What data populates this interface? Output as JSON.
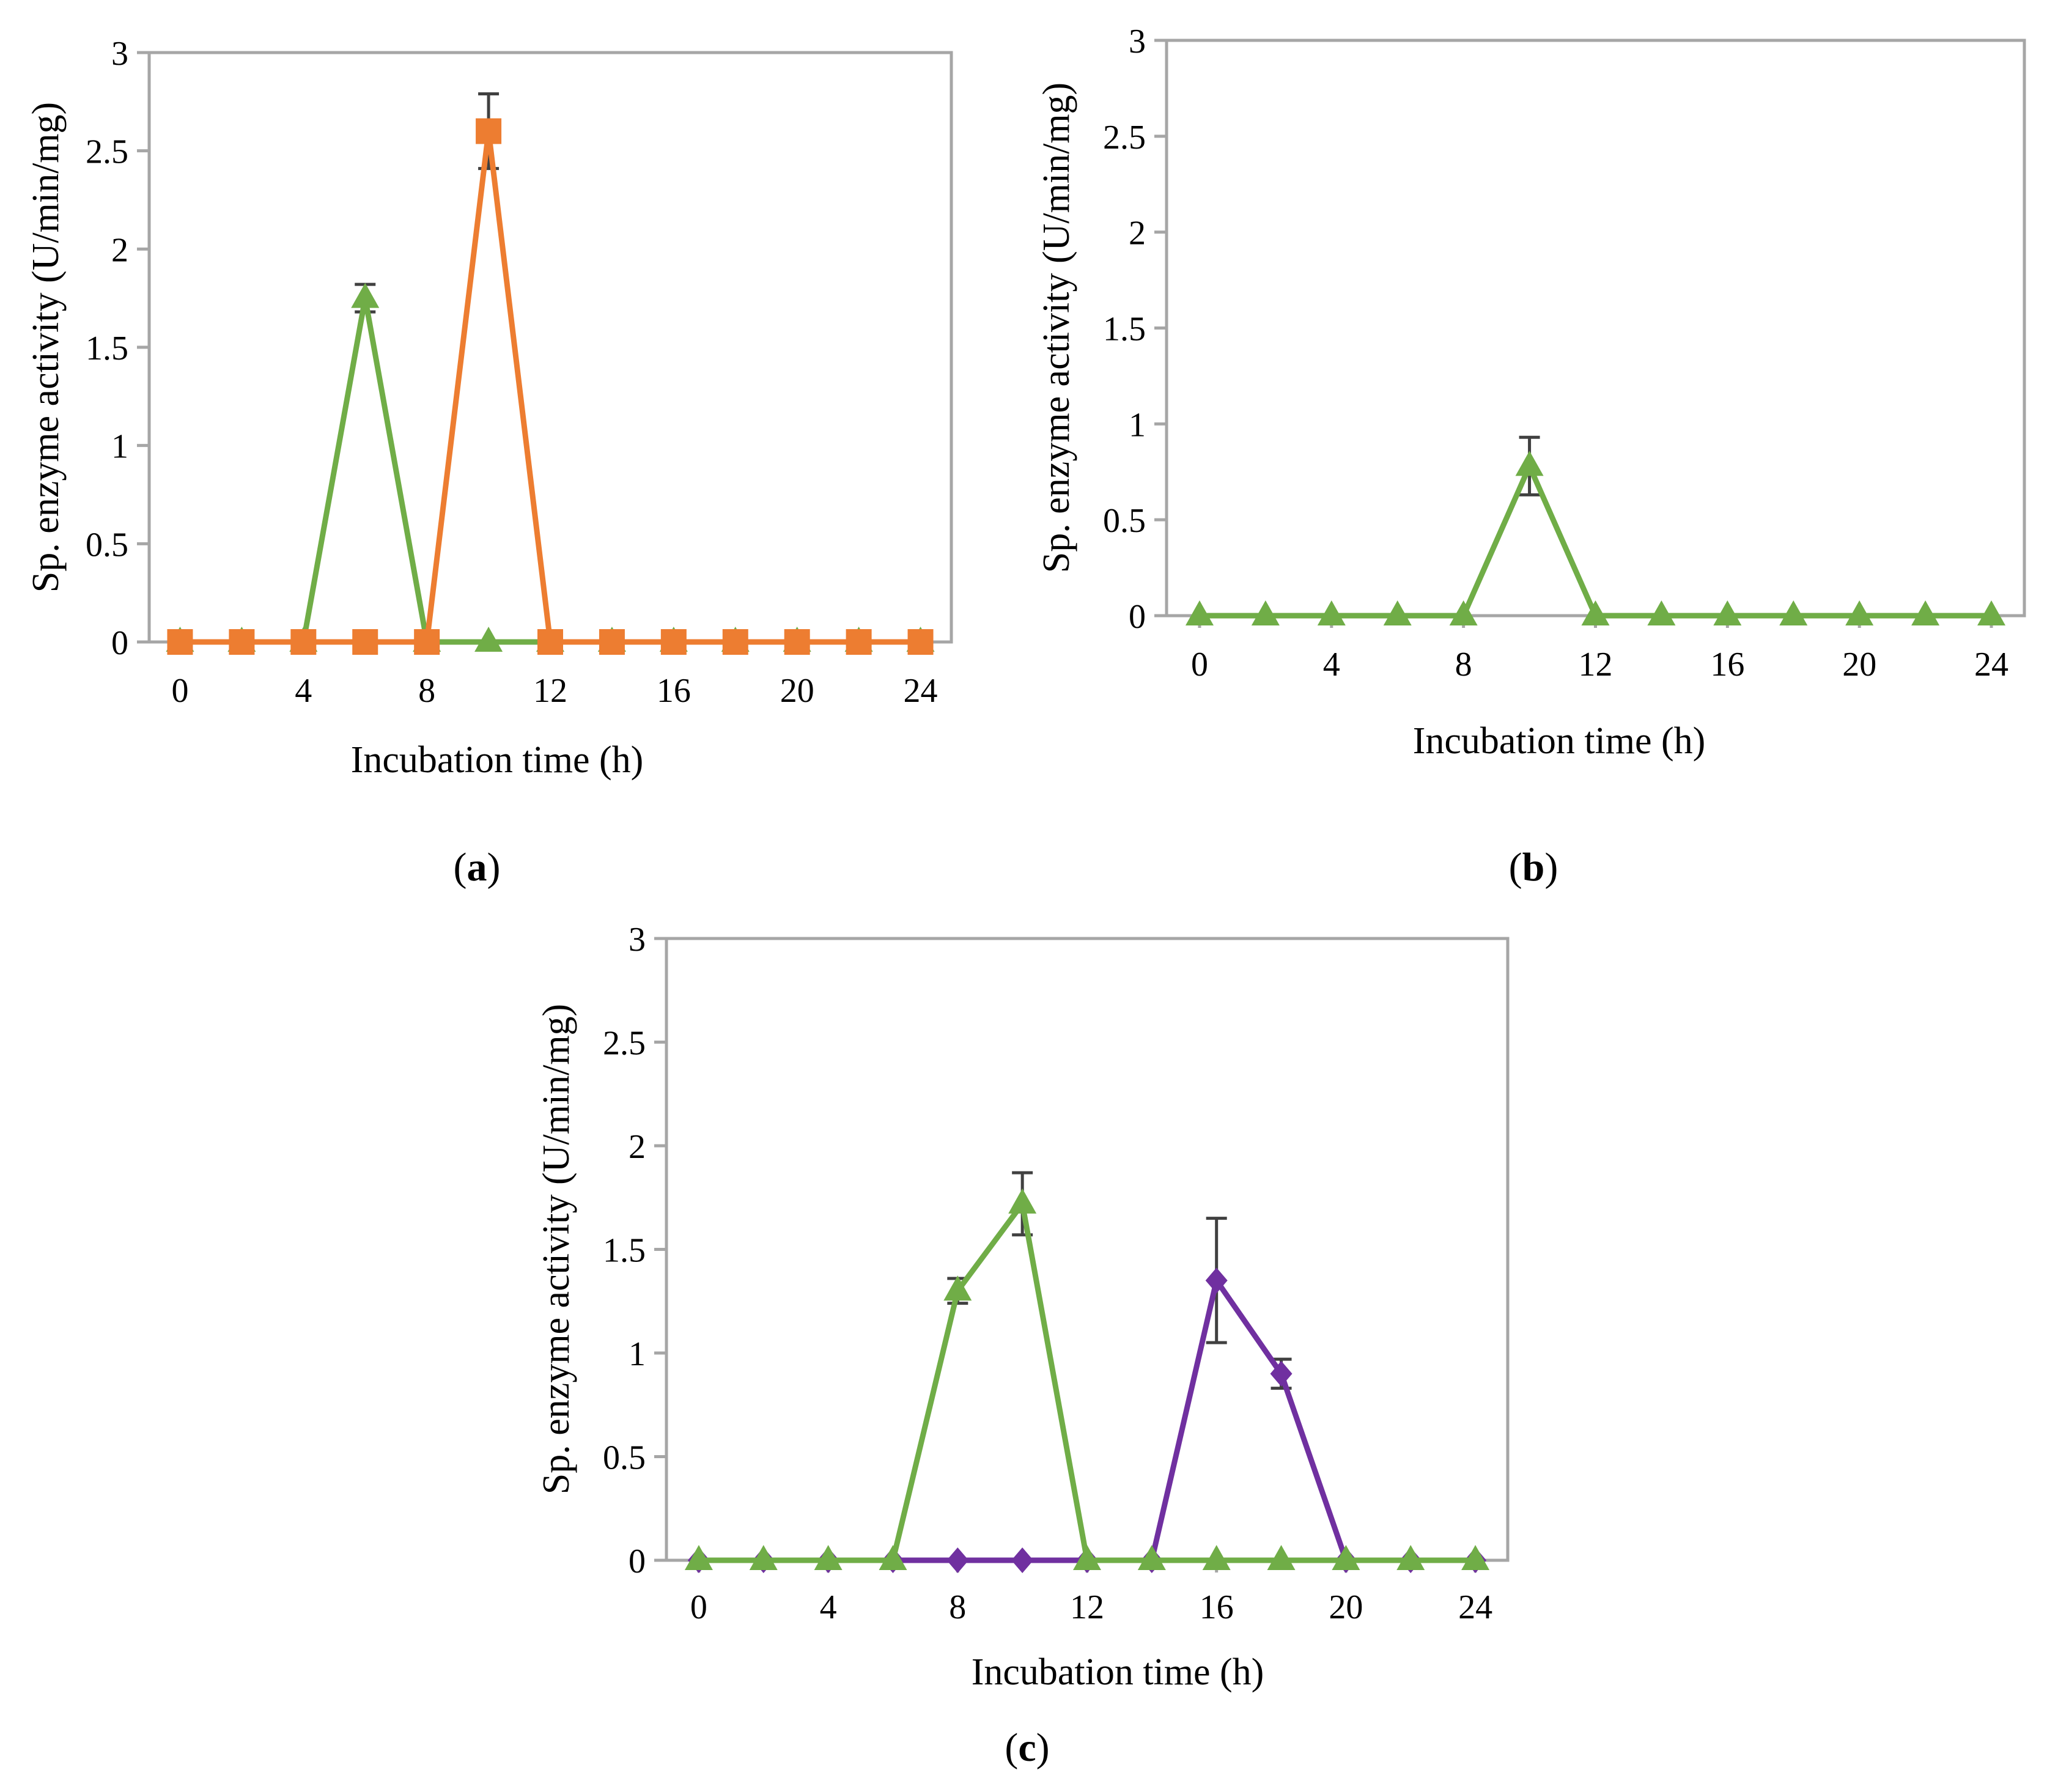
{
  "figure": {
    "panel_labels": [
      "a",
      "b",
      "c"
    ]
  },
  "chart_data": [
    {
      "panel": "a",
      "type": "line",
      "xlabel": "Incubation time (h)",
      "ylabel": "Sp. enzyme activity (U/min/mg)",
      "xlim": [
        -1,
        25
      ],
      "ylim": [
        0,
        3
      ],
      "xticks": [
        0,
        4,
        8,
        12,
        16,
        20,
        24
      ],
      "yticks": [
        0,
        0.5,
        1,
        1.5,
        2,
        2.5,
        3
      ],
      "ytick_labels": [
        "0",
        "0.5",
        "1",
        "1.5",
        "2",
        "2.5",
        "3"
      ],
      "grid": false,
      "x": [
        0,
        2,
        4,
        6,
        8,
        10,
        12,
        14,
        16,
        18,
        20,
        22,
        24
      ],
      "series": [
        {
          "name": "green-triangle",
          "color": "#70ad47",
          "marker": "triangle",
          "values": [
            0,
            0,
            0,
            1.75,
            0,
            0,
            0,
            0,
            0,
            0,
            0,
            0,
            0
          ],
          "errors": [
            0,
            0,
            0,
            0.07,
            0,
            0,
            0,
            0,
            0,
            0,
            0,
            0,
            0
          ]
        },
        {
          "name": "orange-square",
          "color": "#ed7d31",
          "marker": "square",
          "values": [
            0,
            0,
            0,
            0,
            0,
            2.6,
            0,
            0,
            0,
            0,
            0,
            0,
            0
          ],
          "errors": [
            0,
            0,
            0,
            0,
            0,
            0.19,
            0,
            0,
            0,
            0,
            0,
            0,
            0
          ]
        }
      ]
    },
    {
      "panel": "b",
      "type": "line",
      "xlabel": "Incubation time (h)",
      "ylabel": "Sp. enzyme activity (U/min/mg)",
      "xlim": [
        -1,
        25
      ],
      "ylim": [
        0,
        3
      ],
      "xticks": [
        0,
        4,
        8,
        12,
        16,
        20,
        24
      ],
      "yticks": [
        0,
        0.5,
        1,
        1.5,
        2,
        2.5,
        3
      ],
      "ytick_labels": [
        "0",
        "0.5",
        "1",
        "1.5",
        "2",
        "2.5",
        "3"
      ],
      "grid": false,
      "x": [
        0,
        2,
        4,
        6,
        8,
        10,
        12,
        14,
        16,
        18,
        20,
        22,
        24
      ],
      "series": [
        {
          "name": "green-triangle",
          "color": "#70ad47",
          "marker": "triangle",
          "values": [
            0,
            0,
            0,
            0,
            0,
            0.78,
            0,
            0,
            0,
            0,
            0,
            0,
            0
          ],
          "errors": [
            0,
            0,
            0,
            0,
            0,
            0.15,
            0,
            0,
            0,
            0,
            0,
            0,
            0
          ]
        }
      ]
    },
    {
      "panel": "c",
      "type": "line",
      "xlabel": "Incubation time (h)",
      "ylabel": "Sp. enzyme activity (U/min/mg)",
      "xlim": [
        -1,
        25
      ],
      "ylim": [
        0,
        3
      ],
      "xticks": [
        0,
        4,
        8,
        12,
        16,
        20,
        24
      ],
      "yticks": [
        0,
        0.5,
        1,
        1.5,
        2,
        2.5,
        3
      ],
      "ytick_labels": [
        "0",
        "0.5",
        "1",
        "1.5",
        "2",
        "2.5",
        "3"
      ],
      "grid": false,
      "x": [
        0,
        2,
        4,
        6,
        8,
        10,
        12,
        14,
        16,
        18,
        20,
        22,
        24
      ],
      "series": [
        {
          "name": "purple-diamond",
          "color": "#7030a0",
          "marker": "diamond",
          "values": [
            0,
            0,
            0,
            0,
            0,
            0,
            0,
            0,
            1.35,
            0.9,
            0,
            0,
            0
          ],
          "errors": [
            0,
            0,
            0,
            0,
            0,
            0,
            0,
            0,
            0.3,
            0.07,
            0,
            0,
            0
          ]
        },
        {
          "name": "green-triangle",
          "color": "#70ad47",
          "marker": "triangle",
          "values": [
            0,
            0,
            0,
            0,
            1.3,
            1.72,
            0,
            0,
            0,
            0,
            0,
            0,
            0
          ],
          "errors": [
            0,
            0,
            0,
            0,
            0.06,
            0.15,
            0,
            0,
            0,
            0,
            0,
            0,
            0
          ]
        }
      ]
    }
  ]
}
